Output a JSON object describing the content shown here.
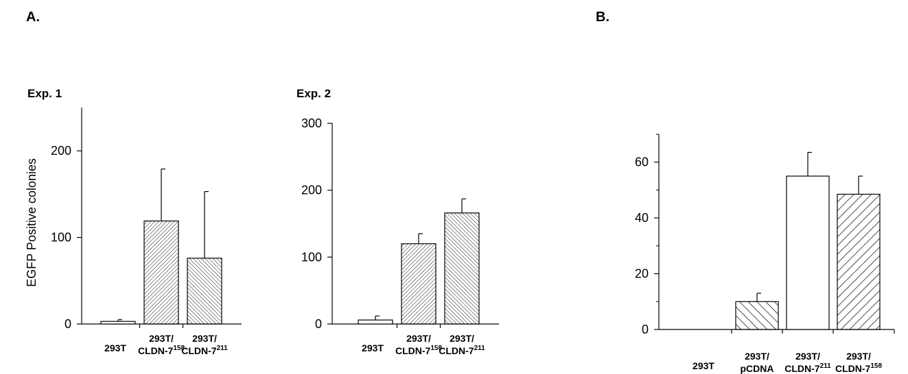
{
  "panels": {
    "a_label": "A.",
    "b_label": "B."
  },
  "chart_data": [
    {
      "type": "bar",
      "title": "Exp. 1",
      "ylabel": "EGFP Positive colonies",
      "ylim": [
        0,
        250
      ],
      "yticks": [
        0,
        100,
        200
      ],
      "categories": [
        {
          "line1": "293T",
          "line2": "",
          "sup": ""
        },
        {
          "line1": "293T/",
          "line2": "CLDN-7",
          "sup": "158"
        },
        {
          "line1": "293T/",
          "line2": "CLDN-7",
          "sup": "211"
        }
      ],
      "values": [
        3,
        119,
        76
      ],
      "errors": [
        2,
        60,
        77
      ],
      "fills": [
        "none",
        "hatch-dense-a",
        "hatch-dense-b"
      ]
    },
    {
      "type": "bar",
      "title": "Exp. 2",
      "ylabel": "",
      "ylim": [
        0,
        300
      ],
      "yticks": [
        0,
        100,
        200,
        300
      ],
      "categories": [
        {
          "line1": "293T",
          "line2": "",
          "sup": ""
        },
        {
          "line1": "293T/",
          "line2": "CLDN-7",
          "sup": "158"
        },
        {
          "line1": "293T/",
          "line2": "CLDN-7",
          "sup": "211"
        }
      ],
      "values": [
        6,
        120,
        166
      ],
      "errors": [
        6,
        15,
        21
      ],
      "fills": [
        "none",
        "hatch-dense-a",
        "hatch-dense-b"
      ]
    },
    {
      "type": "bar",
      "title": "",
      "ylabel": "",
      "ylim": [
        0,
        70
      ],
      "yticks": [
        0,
        20,
        40,
        60
      ],
      "categories": [
        {
          "line1": "293T",
          "line2": "",
          "sup": ""
        },
        {
          "line1": "293T/",
          "line2": "pCDNA",
          "sup": ""
        },
        {
          "line1": "293T/",
          "line2": "CLDN-7",
          "sup": "211"
        },
        {
          "line1": "293T/",
          "line2": "CLDN-7",
          "sup": "158"
        }
      ],
      "values": [
        0,
        10,
        55,
        48.5
      ],
      "errors": [
        0,
        3,
        8.5,
        6.5
      ],
      "fills": [
        "none",
        "hatch-wide-b",
        "none",
        "hatch-wide-a"
      ]
    }
  ]
}
